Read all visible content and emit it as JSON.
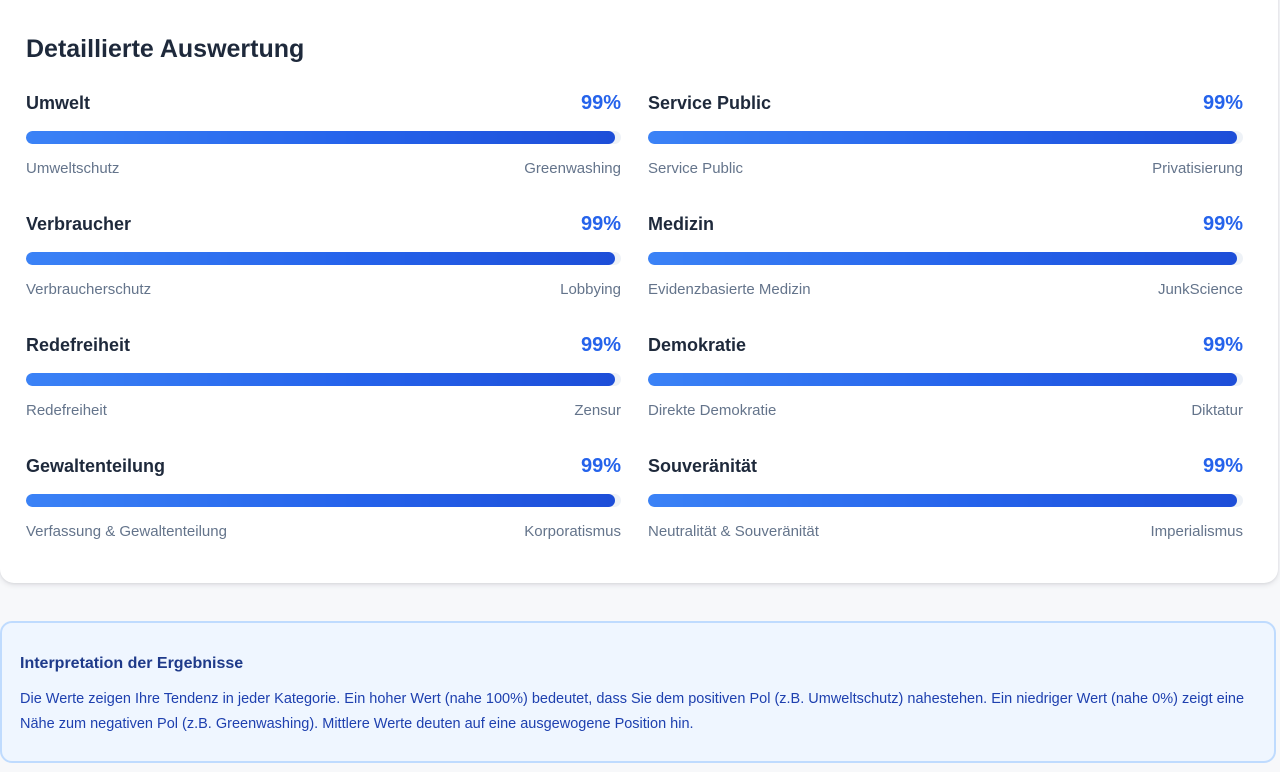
{
  "card": {
    "title": "Detaillierte Auswertung"
  },
  "colors": {
    "accent": "#2563eb",
    "bar_start": "#3b82f6",
    "bar_end": "#1d4ed8",
    "info_bg": "#eff6ff",
    "info_border": "#bfdbfe"
  },
  "categories": [
    {
      "name": "Umwelt",
      "percent_label": "99%",
      "value": 99,
      "left_pole": "Umweltschutz",
      "right_pole": "Greenwashing"
    },
    {
      "name": "Service Public",
      "percent_label": "99%",
      "value": 99,
      "left_pole": "Service Public",
      "right_pole": "Privatisierung"
    },
    {
      "name": "Verbraucher",
      "percent_label": "99%",
      "value": 99,
      "left_pole": "Verbraucherschutz",
      "right_pole": "Lobbying"
    },
    {
      "name": "Medizin",
      "percent_label": "99%",
      "value": 99,
      "left_pole": "Evidenzbasierte Medizin",
      "right_pole": "JunkScience"
    },
    {
      "name": "Redefreiheit",
      "percent_label": "99%",
      "value": 99,
      "left_pole": "Redefreiheit",
      "right_pole": "Zensur"
    },
    {
      "name": "Demokratie",
      "percent_label": "99%",
      "value": 99,
      "left_pole": "Direkte Demokratie",
      "right_pole": "Diktatur"
    },
    {
      "name": "Gewaltenteilung",
      "percent_label": "99%",
      "value": 99,
      "left_pole": "Verfassung & Gewaltenteilung",
      "right_pole": "Korporatismus"
    },
    {
      "name": "Souveränität",
      "percent_label": "99%",
      "value": 99,
      "left_pole": "Neutralität & Souveränität",
      "right_pole": "Imperialismus"
    }
  ],
  "info": {
    "title": "Interpretation der Ergebnisse",
    "text": "Die Werte zeigen Ihre Tendenz in jeder Kategorie. Ein hoher Wert (nahe 100%) bedeutet, dass Sie dem positiven Pol (z.B. Umweltschutz) nahestehen. Ein niedriger Wert (nahe 0%) zeigt eine Nähe zum negativen Pol (z.B. Greenwashing). Mittlere Werte deuten auf eine ausgewogene Position hin."
  }
}
